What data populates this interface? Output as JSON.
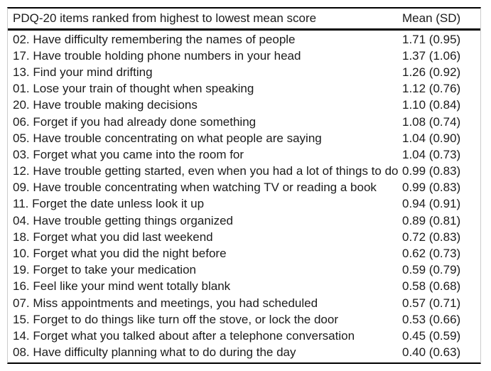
{
  "table": {
    "header": {
      "items": "PDQ-20 items ranked from highest to lowest mean score",
      "mean": "Mean (SD)"
    },
    "rows": [
      {
        "item": "02. Have difficulty remembering the names of people",
        "mean_sd": "1.71 (0.95)"
      },
      {
        "item": "17. Have trouble holding phone numbers in your head",
        "mean_sd": "1.37 (1.06)"
      },
      {
        "item": "13. Find your mind drifting",
        "mean_sd": "1.26 (0.92)"
      },
      {
        "item": "01. Lose your train of thought when speaking",
        "mean_sd": "1.12 (0.76)"
      },
      {
        "item": "20. Have trouble making decisions",
        "mean_sd": "1.10 (0.84)"
      },
      {
        "item": "06. Forget if you had already done something",
        "mean_sd": "1.08 (0.74)"
      },
      {
        "item": "05. Have trouble concentrating on what people are saying",
        "mean_sd": "1.04 (0.90)"
      },
      {
        "item": "03. Forget what you came into the room for",
        "mean_sd": "1.04 (0.73)"
      },
      {
        "item": "12. Have trouble getting started, even when you had a lot of things to do",
        "mean_sd": "0.99 (0.83)"
      },
      {
        "item": "09. Have trouble concentrating when watching TV or reading a book",
        "mean_sd": "0.99 (0.83)"
      },
      {
        "item": "11. Forget the date unless look it up",
        "mean_sd": "0.94 (0.91)"
      },
      {
        "item": "04. Have trouble getting things organized",
        "mean_sd": "0.89 (0.81)"
      },
      {
        "item": "18. Forget what you did last weekend",
        "mean_sd": "0.72 (0.83)"
      },
      {
        "item": "10. Forget what you did the night before",
        "mean_sd": "0.62 (0.73)"
      },
      {
        "item": "19. Forget to take your medication",
        "mean_sd": "0.59 (0.79)"
      },
      {
        "item": "16. Feel like your mind went totally blank",
        "mean_sd": "0.58 (0.68)"
      },
      {
        "item": "07. Miss appointments and meetings, you had scheduled",
        "mean_sd": "0.57 (0.71)"
      },
      {
        "item": "15. Forget to do things like turn off the stove, or lock the door",
        "mean_sd": "0.53 (0.66)"
      },
      {
        "item": "14. Forget what you talked about after a telephone conversation",
        "mean_sd": "0.45 (0.59)"
      },
      {
        "item": "08. Have difficulty planning what to do during the day",
        "mean_sd": "0.40 (0.63)"
      }
    ],
    "colors": {
      "rule": "#000000",
      "side_border": "#cccccc",
      "text": "#1b1b1b",
      "background": "#ffffff"
    }
  }
}
